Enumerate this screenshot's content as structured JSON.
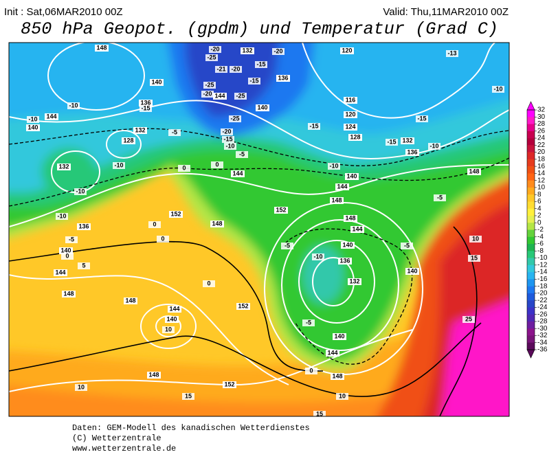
{
  "header": {
    "init": "Init : Sat,06MAR2010 00Z",
    "valid": "Valid: Thu,11MAR2010 00Z",
    "title": "850 hPa Geopot. (gpdm) und Temperatur (Grad C)"
  },
  "color_scale": {
    "ticks": [
      32,
      30,
      28,
      26,
      24,
      22,
      20,
      18,
      16,
      14,
      12,
      10,
      8,
      6,
      4,
      2,
      0,
      -2,
      -4,
      -6,
      -8,
      -10,
      -12,
      -14,
      -16,
      -18,
      -20,
      -22,
      -24,
      -26,
      -28,
      -30,
      -32,
      -34,
      -36
    ],
    "colors": [
      "#ff00ff",
      "#ff19c8",
      "#e6008c",
      "#c80050",
      "#b4003c",
      "#c8143c",
      "#dc2828",
      "#e63c1e",
      "#f05014",
      "#ff6414",
      "#ff8c1e",
      "#ffaa1e",
      "#ffc828",
      "#ffdc32",
      "#fff03c",
      "#e6f050",
      "#b4e646",
      "#64d23c",
      "#32c832",
      "#1eb450",
      "#28c878",
      "#32c8aa",
      "#32c8dc",
      "#28b4f0",
      "#1e96f0",
      "#1e78f0",
      "#1e5adc",
      "#2846c8",
      "#3c32c8",
      "#5028b4",
      "#6e1ea0",
      "#8c148c",
      "#781478",
      "#5a0a5a"
    ]
  },
  "map": {
    "geopotential_labels": [
      148,
      132,
      120,
      140,
      136,
      144,
      140,
      136,
      116,
      120,
      124,
      128,
      132,
      136,
      144,
      140,
      132,
      128,
      132,
      140,
      144,
      148,
      148,
      144,
      152,
      148,
      152,
      148,
      144,
      140,
      136,
      132,
      140,
      136,
      140,
      144,
      148,
      148,
      152,
      144,
      140,
      148,
      152,
      140,
      144,
      148
    ],
    "temperature_labels": [
      -20,
      -20,
      -13,
      -10,
      -25,
      -21,
      -20,
      -15,
      -25,
      -20,
      -25,
      -15,
      -10,
      -15,
      -5,
      -25,
      -20,
      -15,
      -10,
      -5,
      -15,
      -10,
      -15,
      -10,
      -15,
      -10,
      -10,
      -10,
      -10,
      -5,
      0,
      0,
      0,
      0,
      0,
      5,
      -5,
      -5,
      -10,
      -5,
      -5,
      0,
      0,
      10,
      15,
      25,
      10,
      10,
      15,
      10,
      15
    ]
  },
  "footer": {
    "lines": [
      "Daten: GEM-Modell des kanadischen Wetterdienstes",
      "(C) Wetterzentrale",
      "www.wetterzentrale.de"
    ]
  }
}
